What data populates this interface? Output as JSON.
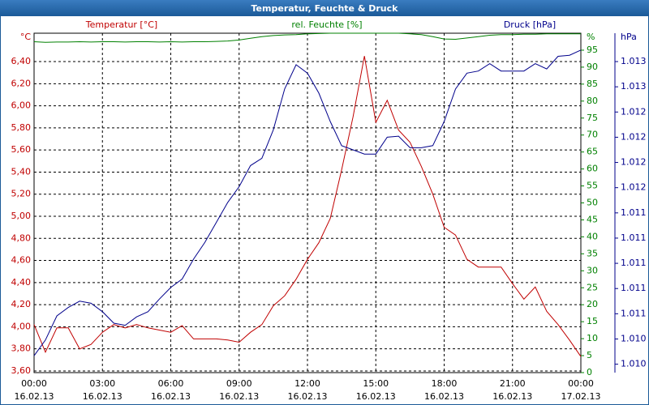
{
  "chart_data": {
    "type": "line",
    "title": "Temperatur, Feuchte & Druck",
    "y_title": "Temperatur [°C]",
    "y2_title": "rel. Feuchte [%]",
    "y3_title": "Druck [hPa]",
    "y_unit": "°C",
    "y2_unit": "%",
    "y3_unit": "hPa",
    "x": [
      0,
      0.5,
      1,
      1.5,
      2,
      2.5,
      3,
      3.5,
      4,
      4.5,
      5,
      5.5,
      6,
      6.5,
      7,
      7.5,
      8,
      8.5,
      9,
      9.5,
      10,
      10.5,
      11,
      11.5,
      12,
      12.5,
      13,
      13.5,
      14,
      14.5,
      15,
      15.5,
      16,
      16.5,
      17,
      17.5,
      18,
      18.5,
      19,
      19.5,
      20,
      20.5,
      21,
      21.5,
      22,
      22.5,
      23,
      23.5,
      24
    ],
    "xlim": [
      0,
      24
    ],
    "xticks": [
      {
        "value": 0,
        "label": "00:00"
      },
      {
        "value": 3,
        "label": "03:00"
      },
      {
        "value": 6,
        "label": "06:00"
      },
      {
        "value": 9,
        "label": "09:00"
      },
      {
        "value": 12,
        "label": "12:00"
      },
      {
        "value": 15,
        "label": "15:00"
      },
      {
        "value": 18,
        "label": "18:00"
      },
      {
        "value": 21,
        "label": "21:00"
      },
      {
        "value": 24,
        "label": "00:00"
      }
    ],
    "xtick_dates": [
      "16.02.13",
      "16.02.13",
      "16.02.13",
      "16.02.13",
      "16.02.13",
      "16.02.13",
      "16.02.13",
      "16.02.13",
      "17.02.13"
    ],
    "ylim": [
      3.585,
      6.657
    ],
    "yticks": [
      {
        "value": 3.6,
        "label": "3,60"
      },
      {
        "value": 3.8,
        "label": "3,80"
      },
      {
        "value": 4.0,
        "label": "4,00"
      },
      {
        "value": 4.2,
        "label": "4,20"
      },
      {
        "value": 4.4,
        "label": "4,40"
      },
      {
        "value": 4.6,
        "label": "4,60"
      },
      {
        "value": 4.8,
        "label": "4,80"
      },
      {
        "value": 5.0,
        "label": "5,00"
      },
      {
        "value": 5.2,
        "label": "5,20"
      },
      {
        "value": 5.4,
        "label": "5,40"
      },
      {
        "value": 5.6,
        "label": "5,60"
      },
      {
        "value": 5.8,
        "label": "5,80"
      },
      {
        "value": 6.0,
        "label": "6,00"
      },
      {
        "value": 6.2,
        "label": "6,20"
      },
      {
        "value": 6.4,
        "label": "6,40"
      }
    ],
    "y2lim": [
      0,
      100
    ],
    "y2ticks": [
      0,
      5,
      10,
      15,
      20,
      25,
      30,
      35,
      40,
      45,
      50,
      55,
      60,
      65,
      70,
      75,
      80,
      85,
      90,
      95
    ],
    "y3lim": [
      1009.96,
      1013.19
    ],
    "y3ticks": [
      {
        "value": 1010.04,
        "label": "1.010"
      },
      {
        "value": 1010.28,
        "label": "1.010"
      },
      {
        "value": 1010.52,
        "label": "1.011"
      },
      {
        "value": 1010.76,
        "label": "1.011"
      },
      {
        "value": 1011.0,
        "label": "1.011"
      },
      {
        "value": 1011.24,
        "label": "1.011"
      },
      {
        "value": 1011.48,
        "label": "1.011"
      },
      {
        "value": 1011.72,
        "label": "1.012"
      },
      {
        "value": 1011.96,
        "label": "1.012"
      },
      {
        "value": 1012.2,
        "label": "1.012"
      },
      {
        "value": 1012.44,
        "label": "1.012"
      },
      {
        "value": 1012.68,
        "label": "1.013"
      },
      {
        "value": 1012.92,
        "label": "1.013"
      }
    ],
    "grid": true,
    "series": [
      {
        "name": "Temperatur",
        "axis": "y",
        "color": "#c00000",
        "values": [
          4.02,
          3.77,
          3.99,
          3.99,
          3.8,
          3.84,
          3.95,
          4.02,
          3.99,
          4.02,
          3.99,
          3.97,
          3.95,
          4.01,
          3.89,
          3.89,
          3.89,
          3.88,
          3.86,
          3.95,
          4.02,
          4.19,
          4.28,
          4.43,
          4.61,
          4.76,
          4.98,
          5.42,
          5.9,
          6.45,
          5.85,
          6.05,
          5.78,
          5.67,
          5.45,
          5.2,
          4.9,
          4.83,
          4.61,
          4.54,
          4.54,
          4.54,
          4.39,
          4.25,
          4.36,
          4.14,
          4.02,
          3.88,
          3.73
        ]
      },
      {
        "name": "rel. Feuchte",
        "axis": "y2",
        "color": "#008000",
        "values": [
          97.5,
          97.3,
          97.4,
          97.4,
          97.5,
          97.4,
          97.5,
          97.5,
          97.4,
          97.5,
          97.5,
          97.4,
          97.5,
          97.4,
          97.5,
          97.5,
          97.6,
          97.7,
          98.0,
          98.5,
          99.0,
          99.3,
          99.5,
          99.6,
          99.8,
          99.9,
          100,
          100,
          100,
          100,
          100,
          100,
          100,
          99.8,
          99.6,
          99.0,
          98.3,
          98.2,
          98.6,
          99.0,
          99.4,
          99.6,
          99.6,
          99.7,
          99.7,
          99.8,
          99.8,
          99.8,
          99.8
        ]
      },
      {
        "name": "Druck",
        "axis": "y3",
        "color": "#00008b",
        "values": [
          1010.12,
          1010.27,
          1010.5,
          1010.58,
          1010.64,
          1010.62,
          1010.54,
          1010.43,
          1010.41,
          1010.49,
          1010.54,
          1010.66,
          1010.77,
          1010.85,
          1011.04,
          1011.2,
          1011.39,
          1011.58,
          1011.73,
          1011.93,
          1012.0,
          1012.27,
          1012.66,
          1012.89,
          1012.81,
          1012.62,
          1012.35,
          1012.12,
          1012.08,
          1012.04,
          1012.04,
          1012.2,
          1012.21,
          1012.1,
          1012.1,
          1012.12,
          1012.35,
          1012.66,
          1012.81,
          1012.83,
          1012.9,
          1012.83,
          1012.83,
          1012.83,
          1012.9,
          1012.85,
          1012.97,
          1012.98,
          1013.03
        ]
      }
    ]
  }
}
